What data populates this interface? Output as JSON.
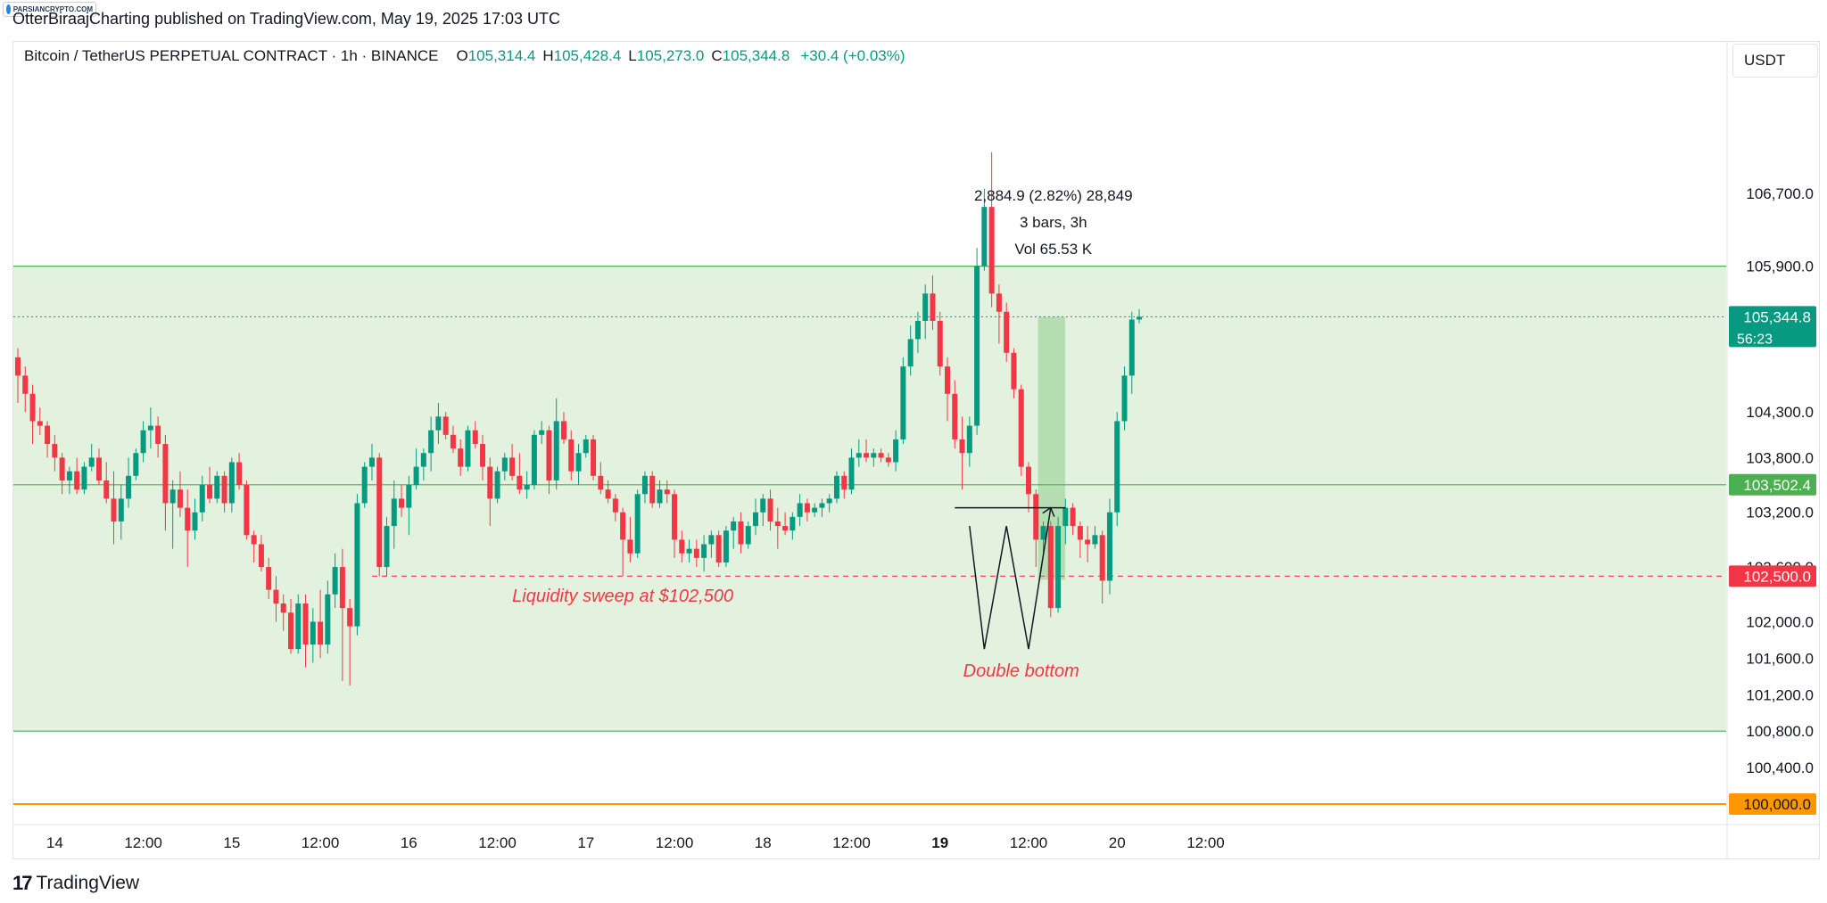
{
  "header": {
    "badge": "PARSIANCRYPTO.COM",
    "published": "OtterBiraajCharting published on TradingView.com, May 19, 2025 17:03 UTC"
  },
  "legend": {
    "symbol": "Bitcoin / TetherUS PERPETUAL CONTRACT · 1h · BINANCE",
    "open_label": "O",
    "open": "105,314.4",
    "high_label": "H",
    "high": "105,428.4",
    "low_label": "L",
    "low": "105,273.0",
    "close_label": "C",
    "close": "105,344.8",
    "change": "+30.4 (+0.03%)"
  },
  "currency": "USDT",
  "footer": {
    "logo_mark": "17",
    "logo_text": "TradingView"
  },
  "chart_data": {
    "type": "candlestick",
    "ylim": [
      99800,
      107400
    ],
    "y_ticks": [
      "106,700.0",
      "105,900.0",
      "104,300.0",
      "103,800.0",
      "103,200.0",
      "102,600.0",
      "102,000.0",
      "101,600.0",
      "101,200.0",
      "100,800.0",
      "100,400.0"
    ],
    "y_tick_values": [
      106700,
      105900,
      104300,
      103800,
      103200,
      102600,
      102000,
      101600,
      101200,
      100800,
      100400
    ],
    "x_ticks": [
      "14",
      "12:00",
      "15",
      "12:00",
      "16",
      "12:00",
      "17",
      "12:00",
      "18",
      "12:00",
      "19",
      "12:00",
      "20",
      "12:00"
    ],
    "x_tick_bold": [
      false,
      false,
      false,
      false,
      false,
      false,
      false,
      false,
      false,
      false,
      true,
      false,
      false,
      false
    ],
    "x_tick_bar_index": [
      5,
      17,
      29,
      41,
      53,
      65,
      77,
      89,
      101,
      113,
      125,
      137,
      149,
      161
    ],
    "colors": {
      "up": "#089981",
      "down": "#f23645",
      "zone": "#e3f2df",
      "zone_line": "#4caf50",
      "orange": "#ff9800",
      "grid": "#ffffff"
    },
    "zone": {
      "top": 105900,
      "bottom": 100800
    },
    "horizontal_lines": [
      {
        "price": 103502.4,
        "label": "103,502.4",
        "color": "#4caf50"
      },
      {
        "price": 100000.0,
        "label": "100,000.0",
        "color": "#ff9800"
      }
    ],
    "sweep_line": {
      "price": 102500,
      "label": "102,500.0",
      "from_bar": 48
    },
    "last_price": {
      "price": 105344.8,
      "label": "105,344.8",
      "countdown": "56:23"
    },
    "neckline": {
      "price": 103250,
      "from_bar": 127,
      "to_bar": 142
    },
    "range_box": {
      "from_bar": 139,
      "to_bar": 141,
      "top": 105344.8,
      "bottom": 102460
    },
    "measure": {
      "line1": "2,884.9 (2.82%) 28,849",
      "line2": "3 bars, 3h",
      "line3": "Vol 65.53 K"
    },
    "annotations": [
      {
        "text": "Liquidity sweep at $102,500",
        "bar": 82,
        "price": 102220
      },
      {
        "text": "Double bottom",
        "bar": 136,
        "price": 101400
      }
    ],
    "pattern_points": [
      [
        129,
        103050
      ],
      [
        131,
        101700
      ],
      [
        134,
        103050
      ],
      [
        137,
        101700
      ],
      [
        140,
        103250
      ]
    ],
    "ohlc": [
      [
        104900,
        105000,
        104400,
        104700
      ],
      [
        104700,
        104800,
        104300,
        104500
      ],
      [
        104500,
        104600,
        103950,
        104200
      ],
      [
        104200,
        104350,
        104050,
        104150
      ],
      [
        104150,
        104200,
        103800,
        103950
      ],
      [
        103950,
        104050,
        103650,
        103800
      ],
      [
        103800,
        103850,
        103400,
        103550
      ],
      [
        103550,
        103700,
        103400,
        103650
      ],
      [
        103650,
        103800,
        103400,
        103450
      ],
      [
        103450,
        103750,
        103400,
        103700
      ],
      [
        103700,
        103950,
        103650,
        103800
      ],
      [
        103800,
        103900,
        103500,
        103550
      ],
      [
        103550,
        103750,
        103300,
        103350
      ],
      [
        103350,
        103650,
        102850,
        103100
      ],
      [
        103100,
        103500,
        102900,
        103350
      ],
      [
        103350,
        103800,
        103250,
        103600
      ],
      [
        103600,
        103900,
        103550,
        103850
      ],
      [
        103850,
        104200,
        103750,
        104100
      ],
      [
        104100,
        104350,
        103900,
        104150
      ],
      [
        104150,
        104250,
        103800,
        103950
      ],
      [
        103950,
        104050,
        103000,
        103300
      ],
      [
        103300,
        103550,
        102800,
        103450
      ],
      [
        103450,
        103650,
        103150,
        103250
      ],
      [
        103250,
        103450,
        102600,
        103000
      ],
      [
        103000,
        103350,
        102900,
        103200
      ],
      [
        103200,
        103600,
        103100,
        103500
      ],
      [
        103500,
        103700,
        103300,
        103350
      ],
      [
        103350,
        103650,
        103300,
        103600
      ],
      [
        103600,
        103650,
        103200,
        103300
      ],
      [
        103300,
        103800,
        103200,
        103750
      ],
      [
        103750,
        103850,
        103450,
        103500
      ],
      [
        103500,
        103550,
        102900,
        102950
      ],
      [
        102950,
        103000,
        102650,
        102850
      ],
      [
        102850,
        102950,
        102550,
        102600
      ],
      [
        102600,
        102700,
        102250,
        102350
      ],
      [
        102350,
        102500,
        102000,
        102200
      ],
      [
        102200,
        102300,
        101900,
        102100
      ],
      [
        102100,
        102250,
        101650,
        101700
      ],
      [
        101700,
        102300,
        101650,
        102200
      ],
      [
        102200,
        102300,
        101500,
        101750
      ],
      [
        101750,
        102150,
        101550,
        102000
      ],
      [
        102000,
        102350,
        101600,
        101750
      ],
      [
        101750,
        102450,
        101650,
        102300
      ],
      [
        102300,
        102750,
        102150,
        102600
      ],
      [
        102600,
        102800,
        101350,
        102150
      ],
      [
        102150,
        102250,
        101300,
        101950
      ],
      [
        101950,
        103400,
        101850,
        103300
      ],
      [
        103300,
        103750,
        103250,
        103700
      ],
      [
        103700,
        103950,
        103550,
        103800
      ],
      [
        103800,
        103850,
        102500,
        102600
      ],
      [
        102600,
        103150,
        102500,
        103050
      ],
      [
        103050,
        103550,
        102800,
        103350
      ],
      [
        103350,
        103500,
        103150,
        103250
      ],
      [
        103250,
        103600,
        102950,
        103500
      ],
      [
        103500,
        103900,
        103450,
        103700
      ],
      [
        103700,
        103900,
        103550,
        103850
      ],
      [
        103850,
        104250,
        103650,
        104100
      ],
      [
        104100,
        104400,
        103950,
        104250
      ],
      [
        104250,
        104300,
        104000,
        104050
      ],
      [
        104050,
        104150,
        103850,
        103900
      ],
      [
        103900,
        104000,
        103600,
        103700
      ],
      [
        103700,
        104150,
        103650,
        104100
      ],
      [
        104100,
        104200,
        103900,
        103950
      ],
      [
        103950,
        104050,
        103550,
        103700
      ],
      [
        103700,
        103800,
        103050,
        103350
      ],
      [
        103350,
        103700,
        103300,
        103650
      ],
      [
        103650,
        103850,
        103550,
        103800
      ],
      [
        103800,
        103950,
        103550,
        103600
      ],
      [
        103600,
        103850,
        103400,
        103450
      ],
      [
        103450,
        103650,
        103350,
        103500
      ],
      [
        103500,
        104100,
        103450,
        104050
      ],
      [
        104050,
        104200,
        103950,
        104100
      ],
      [
        104100,
        104150,
        103400,
        103550
      ],
      [
        103550,
        104450,
        103450,
        104200
      ],
      [
        104200,
        104300,
        103950,
        104000
      ],
      [
        104000,
        104100,
        103550,
        103650
      ],
      [
        103650,
        103950,
        103500,
        103850
      ],
      [
        103850,
        104050,
        103800,
        104000
      ],
      [
        104000,
        104050,
        103550,
        103600
      ],
      [
        103600,
        103750,
        103400,
        103450
      ],
      [
        103450,
        103550,
        103300,
        103350
      ],
      [
        103350,
        103400,
        103100,
        103200
      ],
      [
        103200,
        103250,
        102500,
        102900
      ],
      [
        102900,
        103150,
        102650,
        102750
      ],
      [
        102750,
        103450,
        102700,
        103400
      ],
      [
        103400,
        103650,
        103300,
        103600
      ],
      [
        103600,
        103650,
        103250,
        103300
      ],
      [
        103300,
        103550,
        103250,
        103450
      ],
      [
        103450,
        103550,
        103300,
        103400
      ],
      [
        103400,
        103450,
        102700,
        102900
      ],
      [
        102900,
        103000,
        102650,
        102750
      ],
      [
        102750,
        102900,
        102650,
        102800
      ],
      [
        102800,
        102900,
        102600,
        102700
      ],
      [
        102700,
        102950,
        102550,
        102850
      ],
      [
        102850,
        103000,
        102700,
        102950
      ],
      [
        102950,
        103000,
        102600,
        102650
      ],
      [
        102650,
        103050,
        102600,
        103000
      ],
      [
        103000,
        103150,
        102800,
        103100
      ],
      [
        103100,
        103200,
        102750,
        102850
      ],
      [
        102850,
        103100,
        102800,
        103050
      ],
      [
        103050,
        103350,
        102950,
        103200
      ],
      [
        103200,
        103400,
        103050,
        103350
      ],
      [
        103350,
        103450,
        103000,
        103100
      ],
      [
        103100,
        103250,
        102800,
        103050
      ],
      [
        103050,
        103200,
        102950,
        103000
      ],
      [
        103000,
        103200,
        102900,
        103150
      ],
      [
        103150,
        103400,
        103050,
        103300
      ],
      [
        103300,
        103350,
        103100,
        103200
      ],
      [
        103200,
        103300,
        103150,
        103250
      ],
      [
        103250,
        103350,
        103150,
        103300
      ],
      [
        103300,
        103400,
        103200,
        103350
      ],
      [
        103350,
        103650,
        103300,
        103600
      ],
      [
        103600,
        103650,
        103350,
        103450
      ],
      [
        103450,
        103900,
        103400,
        103800
      ],
      [
        103800,
        104000,
        103700,
        103850
      ],
      [
        103850,
        104000,
        103750,
        103800
      ],
      [
        103800,
        103900,
        103700,
        103850
      ],
      [
        103850,
        103900,
        103750,
        103800
      ],
      [
        103800,
        103850,
        103700,
        103750
      ],
      [
        103750,
        104100,
        103650,
        104000
      ],
      [
        104000,
        104900,
        103950,
        104800
      ],
      [
        104800,
        105250,
        104700,
        105100
      ],
      [
        105100,
        105400,
        104950,
        105300
      ],
      [
        105300,
        105700,
        105100,
        105600
      ],
      [
        105600,
        105800,
        105200,
        105300
      ],
      [
        105300,
        105400,
        104700,
        104800
      ],
      [
        104800,
        104900,
        104200,
        104500
      ],
      [
        104500,
        104650,
        103900,
        104000
      ],
      [
        104000,
        104250,
        103450,
        103850
      ],
      [
        103850,
        104250,
        103700,
        104150
      ],
      [
        104150,
        106100,
        104050,
        105900
      ],
      [
        105900,
        106750,
        105850,
        106550
      ],
      [
        106550,
        107150,
        105450,
        105600
      ],
      [
        105600,
        105700,
        105050,
        105400
      ],
      [
        105400,
        105500,
        104850,
        104950
      ],
      [
        104950,
        105000,
        104450,
        104550
      ],
      [
        104550,
        104600,
        103600,
        103700
      ],
      [
        103700,
        103750,
        103200,
        103400
      ],
      [
        103400,
        103450,
        102600,
        102900
      ],
      [
        102900,
        103100,
        102750,
        103050
      ],
      [
        103050,
        103100,
        102050,
        102150
      ],
      [
        102150,
        103150,
        102100,
        103050
      ],
      [
        103050,
        103350,
        102850,
        103250
      ],
      [
        103250,
        103300,
        102950,
        103050
      ],
      [
        103050,
        103100,
        102700,
        102900
      ],
      [
        102900,
        103050,
        102650,
        102850
      ],
      [
        102850,
        103050,
        102800,
        102950
      ],
      [
        102950,
        103000,
        102200,
        102450
      ],
      [
        102450,
        103350,
        102300,
        103200
      ],
      [
        103200,
        104300,
        103050,
        104200
      ],
      [
        104200,
        104800,
        104100,
        104700
      ],
      [
        104700,
        105400,
        104500,
        105314.4
      ],
      [
        105314.4,
        105428.4,
        105273,
        105344.8
      ]
    ]
  }
}
